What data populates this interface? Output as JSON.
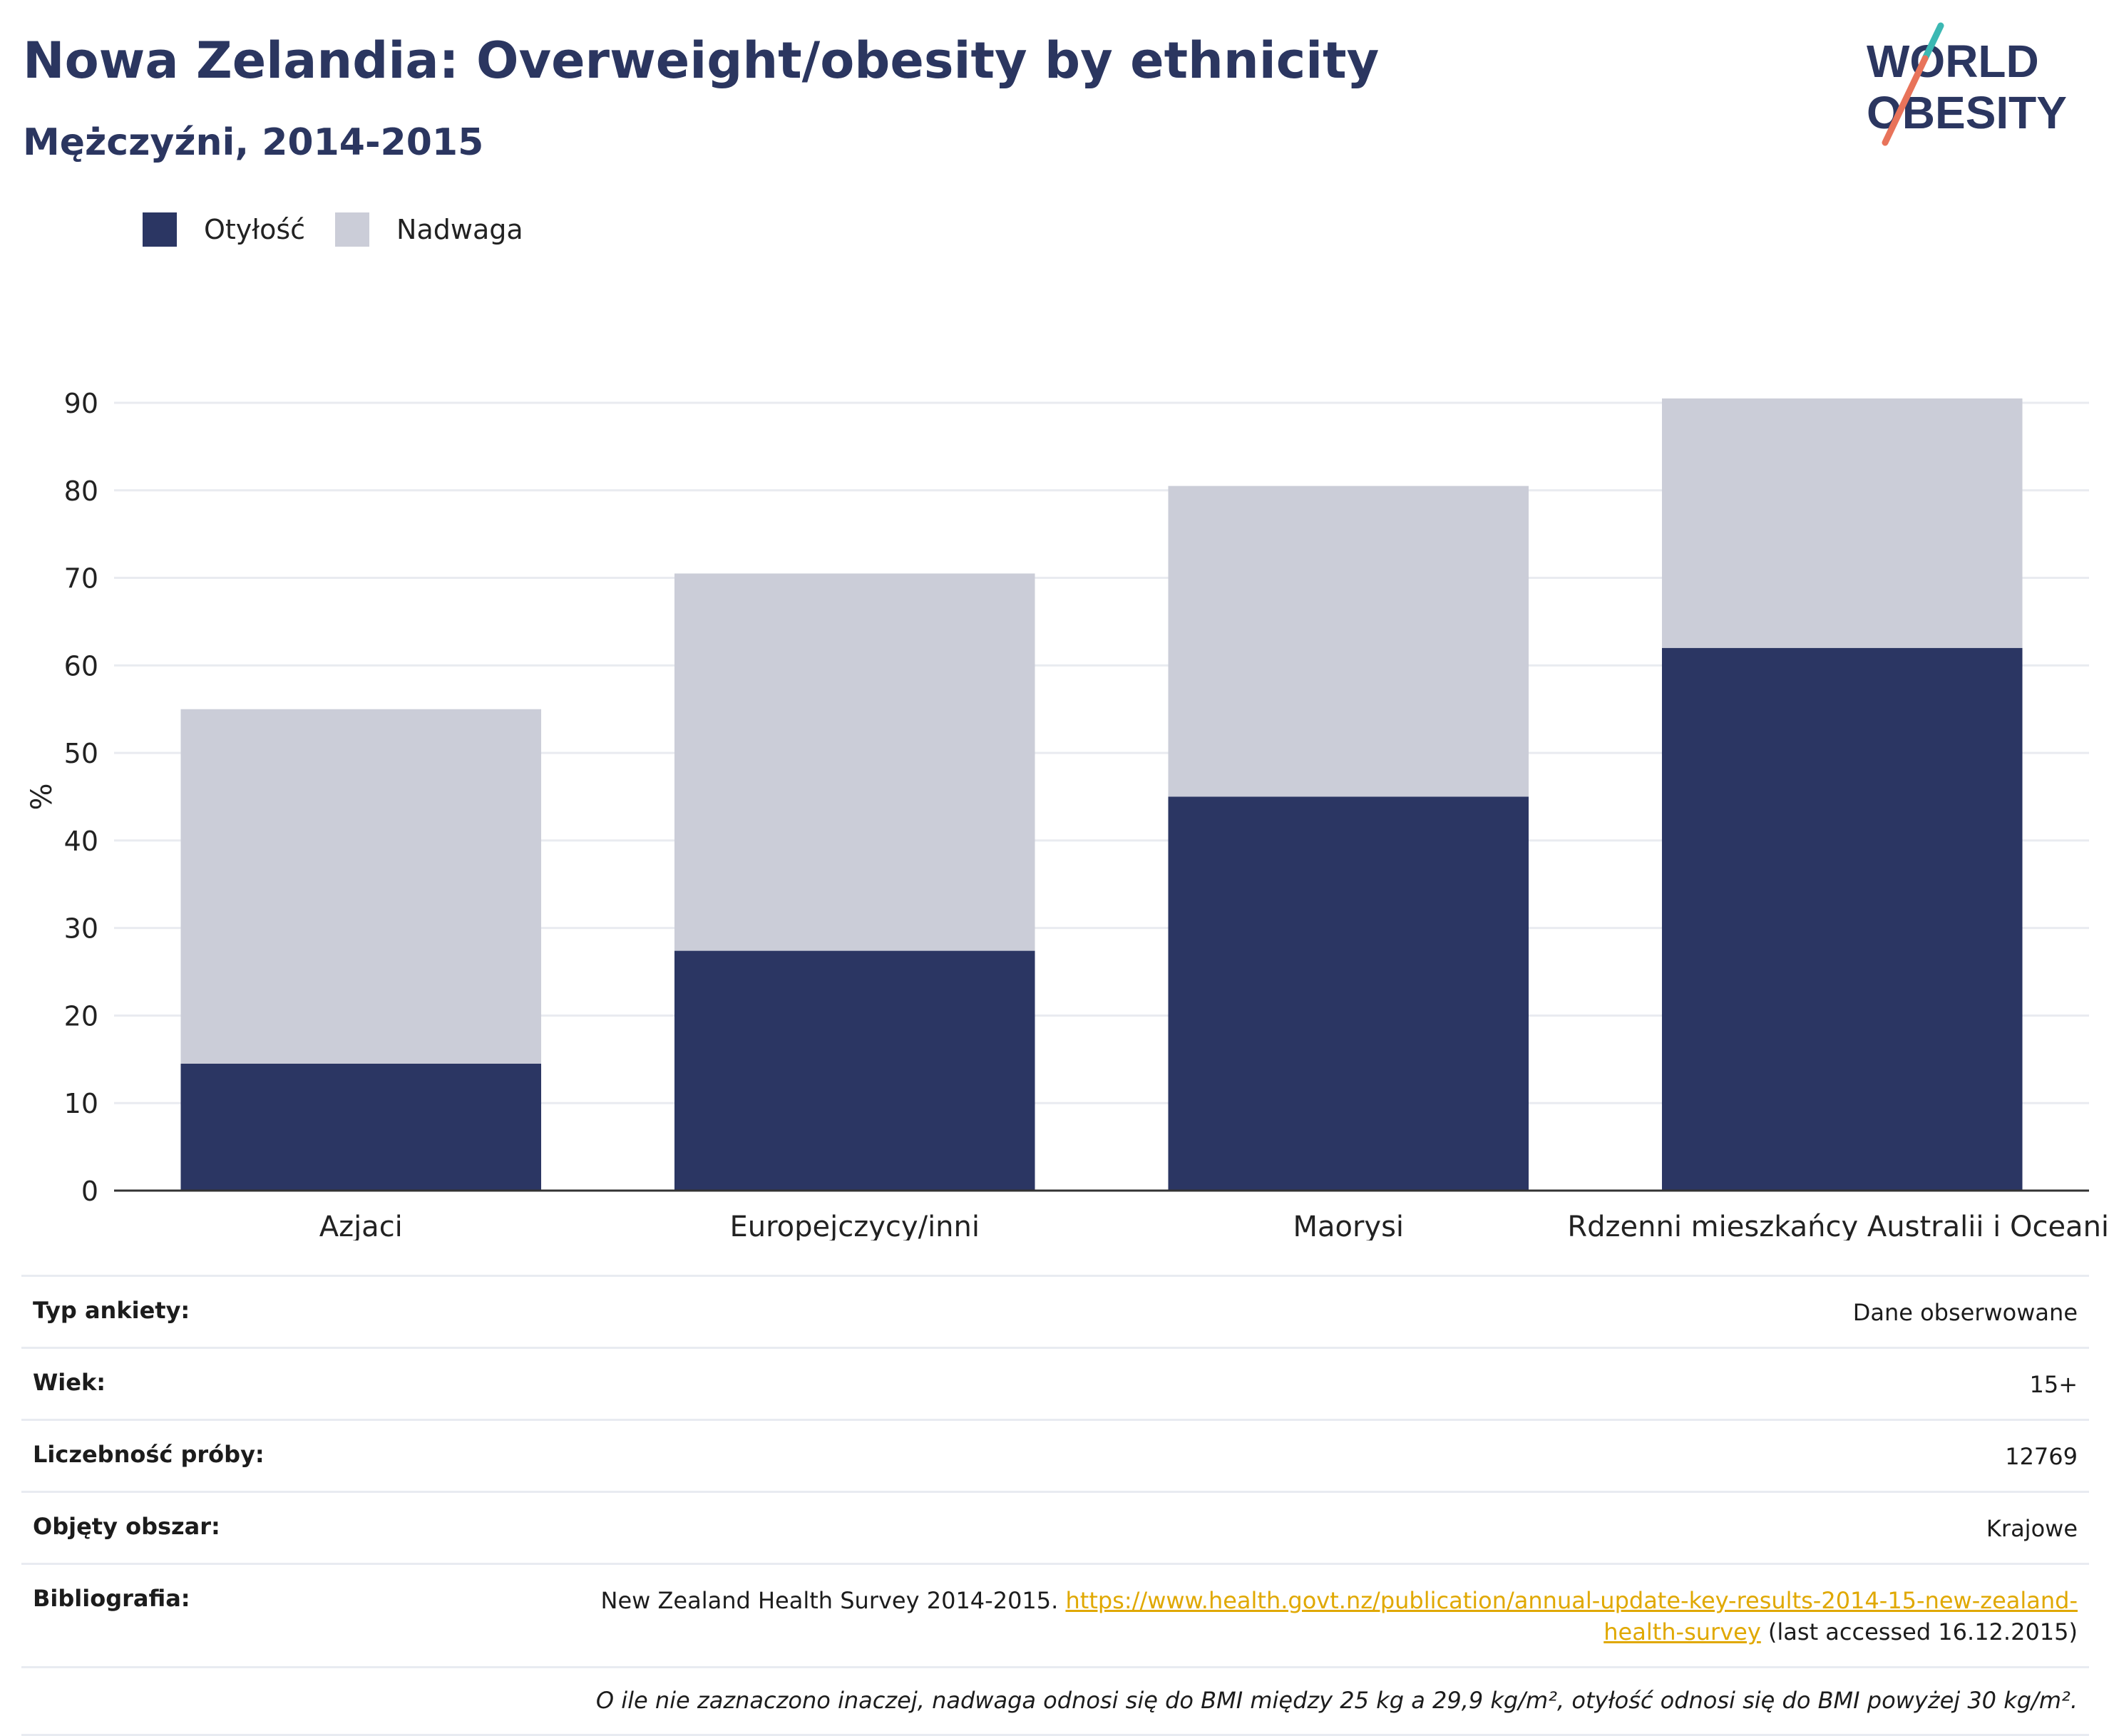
{
  "header": {
    "title": "Nowa Zelandia: Overweight/obesity by ethnicity",
    "subtitle": "Mężczyźni, 2014-2015"
  },
  "logo": {
    "line1": "WORLD",
    "line2": "OBESITY",
    "accent_colors": [
      "#3cb8b3",
      "#e8735a"
    ]
  },
  "legend": {
    "obesity_label": "Otyłość",
    "overweight_label": "Nadwaga"
  },
  "colors": {
    "obesity": "#2b3663",
    "overweight": "#cbcdd8",
    "title": "#2b3660",
    "link": "#e0a800"
  },
  "chart_data": {
    "type": "bar",
    "stacked": true,
    "categories": [
      "Azjaci",
      "Europejczycy/inni",
      "Maorysi",
      "Rdzenni mieszkańcy Australii i Oceanii"
    ],
    "series": [
      {
        "name": "Otyłość",
        "values": [
          14.5,
          27.4,
          45.0,
          62.0
        ]
      },
      {
        "name": "Nadwaga",
        "values": [
          40.5,
          43.1,
          35.5,
          28.5
        ]
      }
    ],
    "ylabel": "%",
    "ylim": [
      0,
      90
    ],
    "yticks": [
      0,
      10,
      20,
      30,
      40,
      50,
      60,
      70,
      80,
      90
    ],
    "grid": true,
    "legend_position": "top-left"
  },
  "meta": {
    "rows": [
      {
        "label": "Typ ankiety:",
        "value": "Dane obserwowane"
      },
      {
        "label": "Wiek:",
        "value": "15+"
      },
      {
        "label": "Liczebność próby:",
        "value": "12769"
      },
      {
        "label": "Objęty obszar:",
        "value": "Krajowe"
      }
    ],
    "bibliography": {
      "label": "Bibliografia:",
      "text_before": "New Zealand Health Survey 2014-2015. ",
      "link_text": "https://www.health.govt.nz/publication/annual-update-key-results-2014-15-new-zealand-health-survey",
      "text_after": " (last accessed 16.12.2015)"
    },
    "note": "O ile nie zaznaczono inaczej, nadwaga odnosi się do BMI między 25 kg a 29,9 kg/m², otyłość odnosi się do BMI powyżej 30 kg/m²."
  }
}
